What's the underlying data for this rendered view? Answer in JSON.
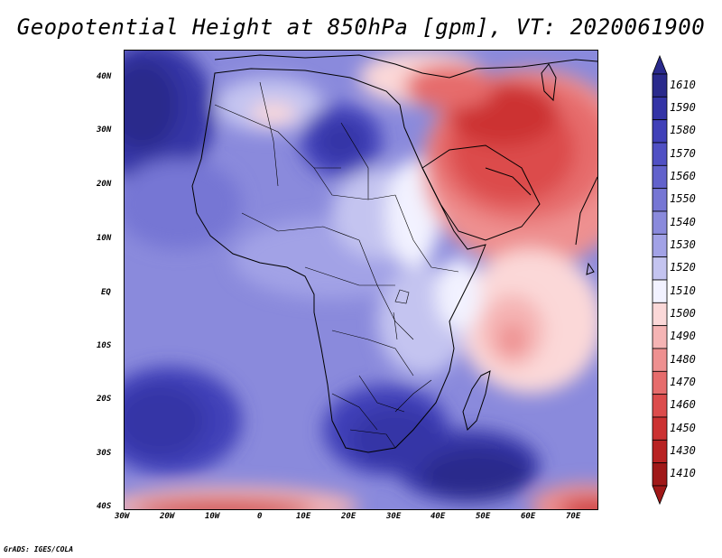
{
  "title": "Geopotential Height at 850hPa [gpm], VT: 2020061900",
  "credit": "GrADS: IGES/COLA",
  "lat_labels": [
    "40N",
    "30N",
    "20N",
    "10N",
    "EQ",
    "10S",
    "20S",
    "30S",
    "40S"
  ],
  "lon_labels": [
    "30W",
    "20W",
    "10W",
    "0",
    "10E",
    "20E",
    "30E",
    "40E",
    "50E",
    "60E",
    "70E"
  ],
  "colorbar": {
    "levels": [
      "1610",
      "1590",
      "1580",
      "1570",
      "1560",
      "1550",
      "1540",
      "1530",
      "1520",
      "1510",
      "1500",
      "1490",
      "1480",
      "1470",
      "1460",
      "1450",
      "1430",
      "1410"
    ],
    "colors": [
      "#2a2a8c",
      "#3434a6",
      "#4040b8",
      "#5050c4",
      "#6262cc",
      "#7676d4",
      "#8a8adc",
      "#a2a2e6",
      "#c4c4f0",
      "#f2f2ff",
      "#fbd8d8",
      "#f5b4b4",
      "#ee9090",
      "#e66c6c",
      "#dc4c4c",
      "#cc3232",
      "#b82222",
      "#a01818"
    ]
  },
  "map_region": {
    "lon_range": [
      -30,
      75
    ],
    "lat_range": [
      -40,
      45
    ]
  }
}
